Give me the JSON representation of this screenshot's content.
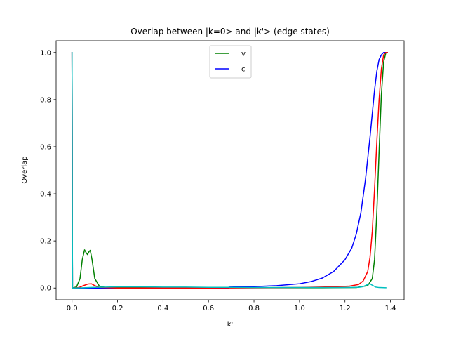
{
  "chart_data": {
    "type": "line",
    "title": "Overlap between |k=0> and |k'> (edge states)",
    "xlabel": "k'",
    "ylabel": "Overlap",
    "xlim": [
      -0.07,
      1.46
    ],
    "ylim": [
      -0.05,
      1.05
    ],
    "xticks": [
      0.0,
      0.2,
      0.4,
      0.6,
      0.8,
      1.0,
      1.2,
      1.4
    ],
    "xtick_labels": [
      "0.0",
      "0.2",
      "0.4",
      "0.6",
      "0.8",
      "1.0",
      "1.2",
      "1.4"
    ],
    "yticks": [
      0.0,
      0.2,
      0.4,
      0.6,
      0.8,
      1.0
    ],
    "ytick_labels": [
      "0.0",
      "0.2",
      "0.4",
      "0.6",
      "0.8",
      "1.0"
    ],
    "grid": false,
    "legend_position": "top-center",
    "series": [
      {
        "name": "v",
        "color": "#008000",
        "points": [
          [
            0,
            1.0
          ],
          [
            0.002,
            0.0
          ],
          [
            0.02,
            0.005
          ],
          [
            0.035,
            0.04
          ],
          [
            0.045,
            0.12
          ],
          [
            0.055,
            0.162
          ],
          [
            0.062,
            0.15
          ],
          [
            0.068,
            0.142
          ],
          [
            0.075,
            0.155
          ],
          [
            0.08,
            0.16
          ],
          [
            0.088,
            0.12
          ],
          [
            0.1,
            0.04
          ],
          [
            0.12,
            0.008
          ],
          [
            0.15,
            0.002
          ],
          [
            0.3,
            0.002
          ],
          [
            0.6,
            0.001
          ],
          [
            0.9,
            0.001
          ],
          [
            1.1,
            0.001
          ],
          [
            1.25,
            0.002
          ],
          [
            1.3,
            0.01
          ],
          [
            1.32,
            0.04
          ],
          [
            1.33,
            0.12
          ],
          [
            1.34,
            0.32
          ],
          [
            1.35,
            0.58
          ],
          [
            1.36,
            0.82
          ],
          [
            1.37,
            0.96
          ],
          [
            1.38,
            1.0
          ],
          [
            1.386,
            1.0
          ]
        ]
      },
      {
        "name": "c",
        "color": "#0000ff",
        "points": [
          [
            0,
            1.0
          ],
          [
            0.002,
            0.0
          ],
          [
            0.2,
            0.0
          ],
          [
            0.69,
            0.0
          ],
          [
            0.69,
            0.004
          ],
          [
            0.8,
            0.006
          ],
          [
            0.9,
            0.01
          ],
          [
            1.0,
            0.018
          ],
          [
            1.05,
            0.027
          ],
          [
            1.1,
            0.042
          ],
          [
            1.15,
            0.07
          ],
          [
            1.2,
            0.12
          ],
          [
            1.23,
            0.17
          ],
          [
            1.25,
            0.23
          ],
          [
            1.27,
            0.32
          ],
          [
            1.29,
            0.46
          ],
          [
            1.31,
            0.64
          ],
          [
            1.32,
            0.74
          ],
          [
            1.33,
            0.84
          ],
          [
            1.34,
            0.92
          ],
          [
            1.35,
            0.97
          ],
          [
            1.36,
            0.99
          ],
          [
            1.37,
            1.0
          ],
          [
            1.386,
            1.0
          ]
        ]
      },
      {
        "color": "#ff0000",
        "points": [
          [
            0,
            1.0
          ],
          [
            0.002,
            0.0
          ],
          [
            0.03,
            0.002
          ],
          [
            0.05,
            0.01
          ],
          [
            0.07,
            0.017
          ],
          [
            0.085,
            0.018
          ],
          [
            0.1,
            0.01
          ],
          [
            0.12,
            0.003
          ],
          [
            0.2,
            0.0
          ],
          [
            0.6,
            0.0
          ],
          [
            1.0,
            0.002
          ],
          [
            1.15,
            0.005
          ],
          [
            1.22,
            0.008
          ],
          [
            1.26,
            0.015
          ],
          [
            1.28,
            0.03
          ],
          [
            1.3,
            0.07
          ],
          [
            1.31,
            0.13
          ],
          [
            1.32,
            0.24
          ],
          [
            1.33,
            0.42
          ],
          [
            1.34,
            0.62
          ],
          [
            1.35,
            0.8
          ],
          [
            1.36,
            0.93
          ],
          [
            1.37,
            0.99
          ],
          [
            1.38,
            1.0
          ],
          [
            1.386,
            1.0
          ]
        ]
      },
      {
        "color": "#00bfbf",
        "points": [
          [
            0,
            1.0
          ],
          [
            0.002,
            0.0
          ],
          [
            0.05,
            0.001
          ],
          [
            0.1,
            0.003
          ],
          [
            0.2,
            0.005
          ],
          [
            0.3,
            0.005
          ],
          [
            0.4,
            0.004
          ],
          [
            0.5,
            0.004
          ],
          [
            0.6,
            0.003
          ],
          [
            0.7,
            0.003
          ],
          [
            0.8,
            0.002
          ],
          [
            0.9,
            0.002
          ],
          [
            1.0,
            0.002
          ],
          [
            1.1,
            0.002
          ],
          [
            1.2,
            0.002
          ],
          [
            1.26,
            0.003
          ],
          [
            1.28,
            0.006
          ],
          [
            1.3,
            0.015
          ],
          [
            1.31,
            0.018
          ],
          [
            1.32,
            0.012
          ],
          [
            1.335,
            0.004
          ],
          [
            1.35,
            0.002
          ],
          [
            1.38,
            0.001
          ]
        ]
      }
    ]
  }
}
